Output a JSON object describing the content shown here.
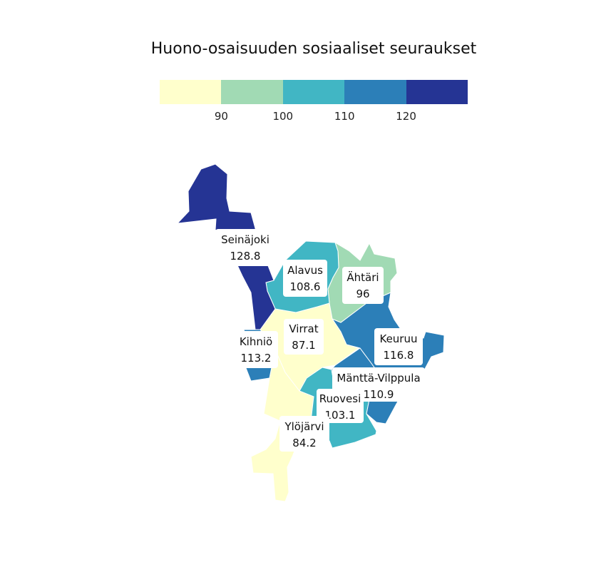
{
  "title": "Huono-osaisuuden sosiaaliset seuraukset",
  "legend": {
    "colors": [
      "#ffffcc",
      "#a1dab4",
      "#41b6c4",
      "#2c7fb8",
      "#253494"
    ],
    "ticks": [
      "90",
      "100",
      "110",
      "120"
    ]
  },
  "regions": [
    {
      "name": "Seinäjoki",
      "value": "128.8"
    },
    {
      "name": "Alavus",
      "value": "108.6"
    },
    {
      "name": "Ähtäri",
      "value": "96"
    },
    {
      "name": "Virrat",
      "value": "87.1"
    },
    {
      "name": "Kihniö",
      "value": "113.2"
    },
    {
      "name": "Keuruu",
      "value": "116.8"
    },
    {
      "name": "Mänttä-Vilppula",
      "value": "110.9"
    },
    {
      "name": "Ruovesi",
      "value": "103.1"
    },
    {
      "name": "Ylöjärvi",
      "value": "84.2"
    }
  ]
}
